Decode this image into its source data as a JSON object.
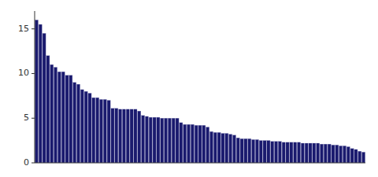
{
  "chart_data": {
    "type": "bar",
    "categories": [
      null,
      null,
      null,
      null,
      null,
      null,
      null,
      null,
      null,
      null,
      null,
      null,
      null,
      null,
      null,
      null,
      null,
      null,
      null,
      null,
      null,
      null,
      null,
      null,
      null,
      null,
      null,
      null,
      null,
      null,
      null,
      null,
      null,
      null,
      null,
      null,
      null,
      null,
      null,
      null,
      null,
      null,
      null,
      null,
      null,
      null,
      null,
      null,
      null,
      null,
      null,
      null,
      null,
      null,
      null,
      null,
      null,
      null,
      null,
      null,
      null,
      null,
      null,
      null,
      null,
      null,
      null,
      null,
      null,
      null,
      null,
      null,
      null,
      null,
      null,
      null,
      null,
      null,
      null,
      null,
      null,
      null,
      null,
      null,
      null,
      null,
      null
    ],
    "values": [
      16.0,
      15.5,
      14.5,
      12.0,
      11.0,
      10.7,
      10.2,
      10.2,
      9.8,
      9.8,
      9.0,
      8.8,
      8.2,
      8.0,
      7.8,
      7.3,
      7.3,
      7.1,
      7.1,
      7.0,
      6.1,
      6.1,
      6.0,
      6.0,
      6.0,
      6.0,
      6.0,
      5.8,
      5.3,
      5.2,
      5.1,
      5.1,
      5.1,
      5.0,
      5.0,
      5.0,
      5.0,
      5.0,
      4.5,
      4.3,
      4.3,
      4.3,
      4.2,
      4.2,
      4.2,
      4.0,
      3.5,
      3.4,
      3.4,
      3.3,
      3.3,
      3.2,
      3.1,
      2.8,
      2.7,
      2.7,
      2.7,
      2.6,
      2.6,
      2.5,
      2.5,
      2.5,
      2.4,
      2.4,
      2.4,
      2.3,
      2.3,
      2.3,
      2.3,
      2.3,
      2.2,
      2.2,
      2.2,
      2.2,
      2.2,
      2.1,
      2.1,
      2.1,
      2.0,
      2.0,
      1.9,
      1.9,
      1.8,
      1.6,
      1.5,
      1.3,
      1.2
    ],
    "color": "#1a1a6e",
    "ylim": [
      0,
      17
    ],
    "yticks": [
      0,
      5,
      10,
      15
    ],
    "grid": false,
    "tick_labels": "y"
  }
}
